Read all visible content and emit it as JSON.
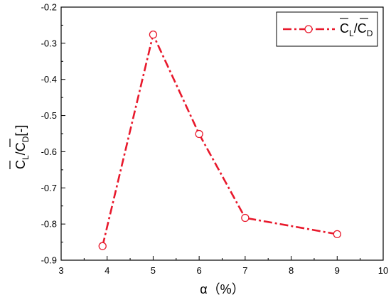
{
  "chart_data": {
    "type": "line",
    "x": [
      3.9,
      5,
      6,
      7,
      9
    ],
    "series": [
      {
        "values": [
          -0.861,
          -0.276,
          -0.551,
          -0.783,
          -0.828
        ]
      }
    ],
    "xlim": [
      3,
      10
    ],
    "ylim": [
      -0.9,
      -0.2
    ],
    "xticks": [
      "3",
      "4",
      "5",
      "6",
      "7",
      "8",
      "9",
      "10"
    ],
    "yticks": [
      "-0.2",
      "-0.3",
      "-0.4",
      "-0.5",
      "-0.6",
      "-0.7",
      "-0.8",
      "-0.9"
    ],
    "xlabel": "α（%）",
    "ylabel": {
      "c1": "C",
      "s1": "L",
      "slash": "/",
      "c2": "C",
      "s2": "D",
      "unit": "[-]"
    },
    "legend": {
      "c1": "C",
      "s1": "L",
      "slash": "/",
      "c2": "C",
      "s2": "D",
      "position": "top-right"
    },
    "grid": false,
    "line_style": "dash-dot",
    "marker": "open-circle",
    "colors": {
      "series": "#e8192c",
      "axis": "#000000"
    }
  }
}
